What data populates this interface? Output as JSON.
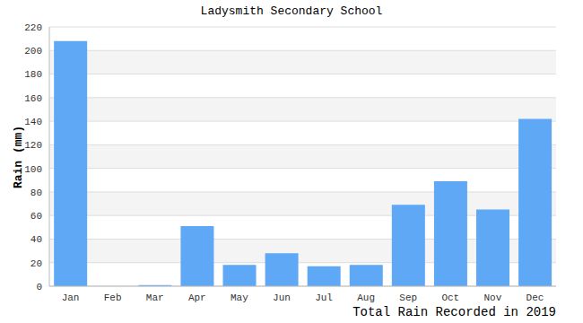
{
  "chart_data": {
    "type": "bar",
    "title": "Ladysmith Secondary School",
    "xlabel": "Total Rain Recorded in 2019",
    "ylabel": "Rain (mm)",
    "categories": [
      "Jan",
      "Feb",
      "Mar",
      "Apr",
      "May",
      "Jun",
      "Jul",
      "Aug",
      "Sep",
      "Oct",
      "Nov",
      "Dec"
    ],
    "values": [
      208,
      0,
      1,
      51,
      18,
      28,
      17,
      18,
      69,
      89,
      65,
      142
    ],
    "color": "#5fa8f5",
    "ylim": [
      0,
      220
    ],
    "yticks": [
      0,
      20,
      40,
      60,
      80,
      100,
      120,
      140,
      160,
      180,
      200,
      220
    ],
    "grid": true
  }
}
